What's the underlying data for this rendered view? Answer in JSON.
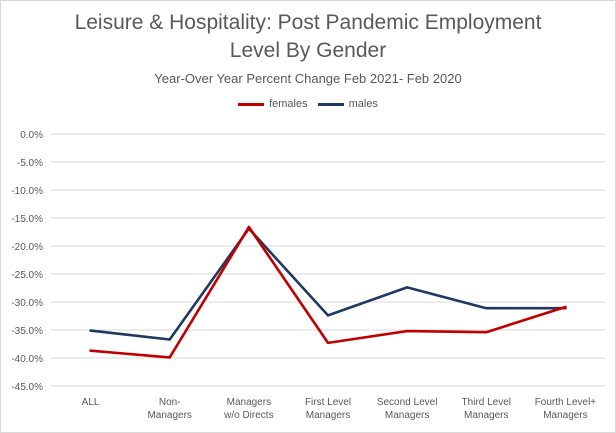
{
  "colors": {
    "females": "#c00000",
    "males": "#1f3864",
    "grid": "#d9d9d9",
    "text": "#595959"
  },
  "chart_data": {
    "type": "line",
    "title_lines": [
      "Leisure & Hospitality: Post Pandemic Employment",
      "Level By Gender"
    ],
    "subtitle": "Year-Over Year Percent Change Feb 2021- Feb 2020",
    "categories": [
      [
        "ALL"
      ],
      [
        "Non-",
        "Managers"
      ],
      [
        "Managers",
        "w/o Directs"
      ],
      [
        "First Level",
        "Managers"
      ],
      [
        "Second Level",
        "Managers"
      ],
      [
        "Third Level",
        "Managers"
      ],
      [
        "Fourth Level+",
        "Managers"
      ]
    ],
    "series": [
      {
        "name": "females",
        "values": [
          -38.7,
          -39.9,
          -16.6,
          -37.3,
          -35.2,
          -35.4,
          -30.9
        ]
      },
      {
        "name": "males",
        "values": [
          -35.1,
          -36.7,
          -16.9,
          -32.4,
          -27.4,
          -31.1,
          -31.1
        ]
      }
    ],
    "yticks": [
      "0.0%",
      "-5.0%",
      "-10.0%",
      "-15.0%",
      "-20.0%",
      "-25.0%",
      "-30.0%",
      "-35.0%",
      "-40.0%",
      "-45.0%"
    ],
    "ylim": [
      -45,
      0
    ],
    "grid": true,
    "legend": "top"
  }
}
